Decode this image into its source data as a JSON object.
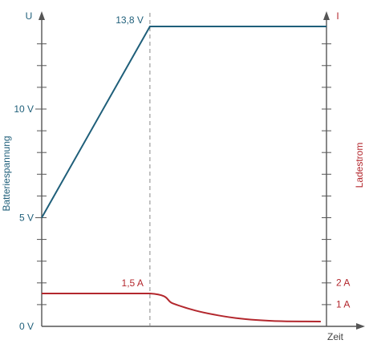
{
  "chart_data": {
    "type": "line",
    "left_axis": {
      "symbol": "U",
      "label": "Batteriespannung",
      "ylim": [
        0,
        14
      ],
      "tick_labels": [
        {
          "value": 0,
          "text": "0 V"
        },
        {
          "value": 5,
          "text": "5 V"
        },
        {
          "value": 10,
          "text": "10 V"
        }
      ],
      "minor_tick_step": 1
    },
    "right_axis": {
      "symbol": "I",
      "label": "Ladestrom",
      "ylim": [
        0,
        14
      ],
      "tick_labels": [
        {
          "value": 1,
          "text": "1 A"
        },
        {
          "value": 2,
          "text": "2 A"
        }
      ],
      "minor_tick_step": 1
    },
    "xlabel": "Zeit",
    "xlim": [
      0,
      10
    ],
    "switch_time": 3.8,
    "series": [
      {
        "axis": "left",
        "color": "#1f5f7a",
        "x": [
          0,
          3.8,
          10
        ],
        "y": [
          5,
          13.8,
          13.8
        ],
        "annotation": {
          "x": 3.8,
          "y": 13.8,
          "text": "13,8 V"
        }
      },
      {
        "axis": "right",
        "color": "#b3272d",
        "x": [
          0,
          3.8,
          4.6,
          5.4,
          6.2,
          7.0,
          7.8,
          8.6,
          9.8
        ],
        "y": [
          1.5,
          1.5,
          1.05,
          0.72,
          0.5,
          0.35,
          0.27,
          0.23,
          0.22
        ],
        "annotation": {
          "x": 3.8,
          "y": 1.5,
          "text": "1,5 A"
        }
      }
    ],
    "colors": {
      "axis": "#555555",
      "guide": "#888888"
    }
  }
}
